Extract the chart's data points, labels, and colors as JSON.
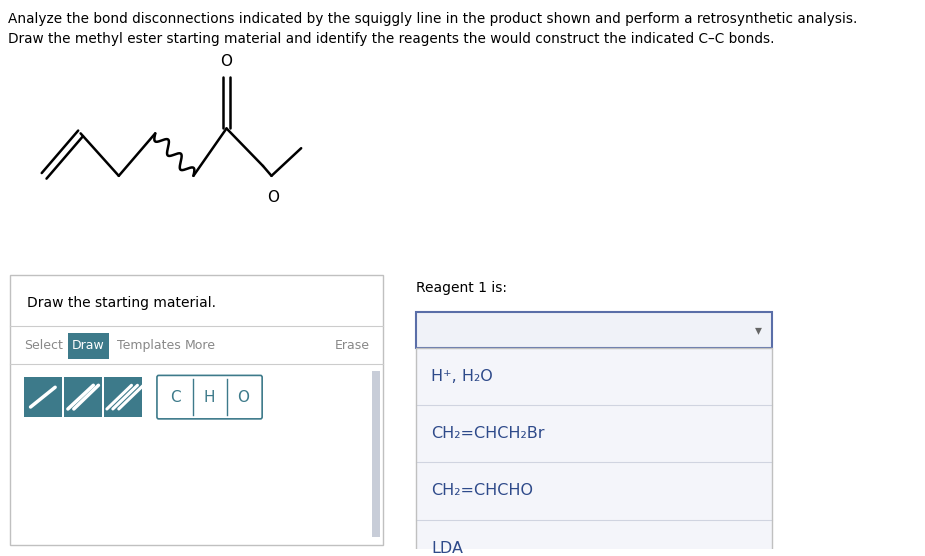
{
  "title_line1": "Analyze the bond disconnections indicated by the squiggly line in the product shown and perform a retrosynthetic analysis.",
  "title_line2": "Draw the methyl ester starting material and identify the reagents the would construct the indicated C–C bonds.",
  "draw_label": "Draw the starting material.",
  "reagent_label": "Reagent 1 is:",
  "dropdown_options": [
    "H⁺, H₂O",
    "CH₂=CHCH₂Br",
    "CH₂=CHCHO",
    "LDA"
  ],
  "bg_color": "#ffffff",
  "text_color": "#000000",
  "teal_color": "#3d7a8a",
  "teal_light": "#5a8fa0",
  "box_border": "#c0c0c0",
  "dropdown_border": "#5a6ea8",
  "option_text_color": "#2e4a8a",
  "option_bg": "#f4f5fa",
  "scrollbar_color": "#c8cdd8"
}
